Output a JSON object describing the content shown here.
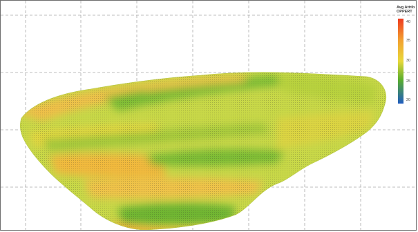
{
  "legend": {
    "title_line1": "Avg Attrib",
    "title_line2": "OPPERT",
    "ticks": [
      "40",
      "35",
      "30",
      "25",
      "20"
    ],
    "tick_values": [
      40,
      35,
      30,
      25,
      20
    ],
    "range": [
      20,
      40
    ],
    "colors": {
      "low": "#1f5bbf",
      "green": "#5aae2e",
      "yellow": "#e8d83a",
      "orange": "#f2a030",
      "high": "#ee3a1f"
    }
  },
  "map": {
    "grid": "dashed",
    "shape_fill_dominant": "#c8d848",
    "band_colors": {
      "green": "#74b834",
      "light_green": "#a8cc3c",
      "yellow": "#d9d840",
      "amber": "#f0c244",
      "gold": "#efb53c"
    }
  }
}
